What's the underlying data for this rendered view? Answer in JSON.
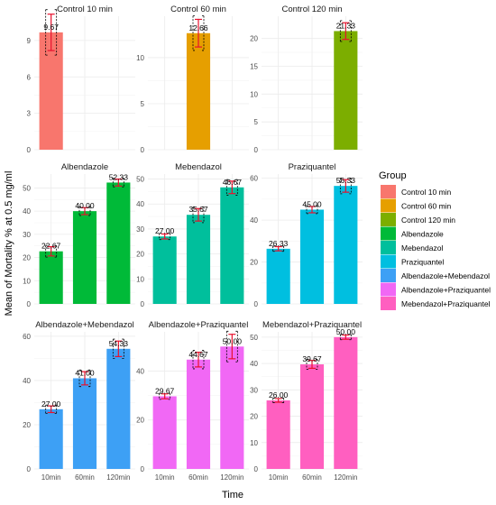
{
  "chart_data": {
    "type": "bar",
    "layout": "faceted 3x3",
    "xlabel": "Time",
    "ylabel": "Mean of Mortality % at 0.5 mg/ml",
    "legend": {
      "title": "Group",
      "position": "right",
      "entries": [
        {
          "name": "Control 10 min",
          "color": "#F8766D"
        },
        {
          "name": "Control 60 min",
          "color": "#E69F00"
        },
        {
          "name": "Control 120 min",
          "color": "#7CAE00"
        },
        {
          "name": "Albendazole",
          "color": "#00BA38"
        },
        {
          "name": "Mebendazol",
          "color": "#00BF9C"
        },
        {
          "name": "Praziquantel",
          "color": "#00BFE0"
        },
        {
          "name": "Albendazole+Mebendazol",
          "color": "#3DA0F5"
        },
        {
          "name": "Albendazole+Praziquantel",
          "color": "#F168F5"
        },
        {
          "name": "Mebendazol+Praziquantel",
          "color": "#FF5FC0"
        }
      ]
    },
    "categories": [
      "10min",
      "60min",
      "120min"
    ],
    "grid": true,
    "facets": [
      {
        "title": "Control 10 min",
        "color": "#F8766D",
        "ylim": [
          0,
          11
        ],
        "yticks": [
          0,
          3,
          6,
          9
        ],
        "bars": [
          {
            "x": "10min",
            "value": 9.67,
            "label": "9.67",
            "err": 1.5
          }
        ]
      },
      {
        "title": "Control 60 min",
        "color": "#E69F00",
        "ylim": [
          0,
          14.5
        ],
        "yticks": [
          0,
          5,
          10
        ],
        "bars": [
          {
            "x": "60min",
            "value": 12.66,
            "label": "12.66",
            "err": 1.5
          }
        ]
      },
      {
        "title": "Control 120 min",
        "color": "#7CAE00",
        "ylim": [
          0,
          24
        ],
        "yticks": [
          0,
          5,
          10,
          15,
          20
        ],
        "bars": [
          {
            "x": "120min",
            "value": 21.33,
            "label": "21.33",
            "err": 1.5
          }
        ]
      },
      {
        "title": "Albendazole",
        "color": "#00BA38",
        "ylim": [
          0,
          56
        ],
        "yticks": [
          0,
          10,
          20,
          30,
          40,
          50
        ],
        "bars": [
          {
            "x": "10min",
            "value": 22.67,
            "label": "22.67",
            "err": 2.0
          },
          {
            "x": "60min",
            "value": 40.0,
            "label": "40.00",
            "err": 1.5
          },
          {
            "x": "120min",
            "value": 52.33,
            "label": "52.33",
            "err": 1.5
          }
        ]
      },
      {
        "title": "Mebendazol",
        "color": "#00BF9C",
        "ylim": [
          0,
          52
        ],
        "yticks": [
          0,
          10,
          20,
          30,
          40,
          50
        ],
        "bars": [
          {
            "x": "10min",
            "value": 27.0,
            "label": "27.00",
            "err": 1.0
          },
          {
            "x": "60min",
            "value": 35.67,
            "label": "35.67",
            "err": 2.5
          },
          {
            "x": "120min",
            "value": 46.67,
            "label": "46.67",
            "err": 2.5
          }
        ]
      },
      {
        "title": "Praziquantel",
        "color": "#00BFE0",
        "ylim": [
          0,
          62
        ],
        "yticks": [
          0,
          20,
          40,
          60
        ],
        "bars": [
          {
            "x": "10min",
            "value": 26.33,
            "label": "26.33",
            "err": 1.0
          },
          {
            "x": "60min",
            "value": 45.0,
            "label": "45.00",
            "err": 1.5
          },
          {
            "x": "120min",
            "value": 56.33,
            "label": "56.33",
            "err": 3.0
          }
        ]
      },
      {
        "title": "Albendazole+Mebendazol",
        "color": "#3DA0F5",
        "ylim": [
          0,
          62
        ],
        "yticks": [
          0,
          20,
          40,
          60
        ],
        "bars": [
          {
            "x": "10min",
            "value": 27.0,
            "label": "27.00",
            "err": 1.5
          },
          {
            "x": "60min",
            "value": 41.0,
            "label": "41.00",
            "err": 3.0
          },
          {
            "x": "120min",
            "value": 54.33,
            "label": "54.33",
            "err": 3.5
          }
        ]
      },
      {
        "title": "Albendazole+Praziquantel",
        "color": "#F168F5",
        "ylim": [
          0,
          56
        ],
        "yticks": [
          0,
          20,
          40
        ],
        "bars": [
          {
            "x": "10min",
            "value": 29.67,
            "label": "29.67",
            "err": 1.0
          },
          {
            "x": "60min",
            "value": 44.67,
            "label": "44.67",
            "err": 3.0
          },
          {
            "x": "120min",
            "value": 50.0,
            "label": "50.00",
            "err": 5.0
          }
        ]
      },
      {
        "title": "Mebendazol+Praziquantel",
        "color": "#FF5FC0",
        "ylim": [
          0,
          52
        ],
        "yticks": [
          0,
          10,
          20,
          30,
          40,
          50
        ],
        "bars": [
          {
            "x": "10min",
            "value": 26.0,
            "label": "26.00",
            "err": 0.7
          },
          {
            "x": "60min",
            "value": 39.67,
            "label": "39.67",
            "err": 1.5
          },
          {
            "x": "120min",
            "value": 50.0,
            "label": "50.00",
            "err": 0.8
          }
        ]
      }
    ]
  }
}
